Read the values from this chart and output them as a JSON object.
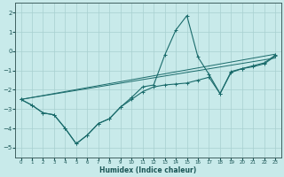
{
  "xlabel": "Humidex (Indice chaleur)",
  "bg_color": "#c8eaea",
  "line_color": "#1a6b6b",
  "grid_color": "#a8d0d0",
  "xlim": [
    -0.5,
    23.5
  ],
  "ylim": [
    -5.5,
    2.5
  ],
  "yticks": [
    -5,
    -4,
    -3,
    -2,
    -1,
    0,
    1,
    2
  ],
  "xticks": [
    0,
    1,
    2,
    3,
    4,
    5,
    6,
    7,
    8,
    9,
    10,
    11,
    12,
    13,
    14,
    15,
    16,
    17,
    18,
    19,
    20,
    21,
    22,
    23
  ],
  "lines": [
    {
      "x": [
        0,
        1,
        2,
        3,
        4,
        5,
        6,
        7,
        8,
        9,
        10,
        11,
        12,
        13,
        14,
        15,
        16,
        17,
        18,
        19,
        20,
        21,
        22,
        23
      ],
      "y": [
        -2.5,
        -2.8,
        -3.2,
        -3.3,
        -4.0,
        -4.8,
        -4.35,
        -3.75,
        -3.5,
        -2.9,
        -2.5,
        -2.1,
        -1.85,
        -1.75,
        -1.7,
        -1.65,
        -1.5,
        -1.35,
        -2.2,
        -1.1,
        -0.9,
        -0.8,
        -0.65,
        -0.25
      ],
      "marker": true
    },
    {
      "x": [
        0,
        1,
        2,
        3,
        4,
        5,
        6,
        7,
        8,
        9,
        10,
        11,
        12,
        13,
        14,
        15,
        16,
        17,
        18,
        19,
        20,
        21,
        22,
        23
      ],
      "y": [
        -2.5,
        -2.8,
        -3.2,
        -3.3,
        -4.0,
        -4.8,
        -4.35,
        -3.75,
        -3.5,
        -2.9,
        -2.4,
        -1.85,
        -1.75,
        -0.2,
        1.1,
        1.85,
        -0.3,
        -1.2,
        -2.2,
        -1.05,
        -0.9,
        -0.75,
        -0.6,
        -0.2
      ],
      "marker": true
    },
    {
      "x": [
        0,
        23
      ],
      "y": [
        -2.5,
        -0.15
      ],
      "marker": false
    },
    {
      "x": [
        0,
        23
      ],
      "y": [
        -2.5,
        -0.35
      ],
      "marker": false
    }
  ]
}
